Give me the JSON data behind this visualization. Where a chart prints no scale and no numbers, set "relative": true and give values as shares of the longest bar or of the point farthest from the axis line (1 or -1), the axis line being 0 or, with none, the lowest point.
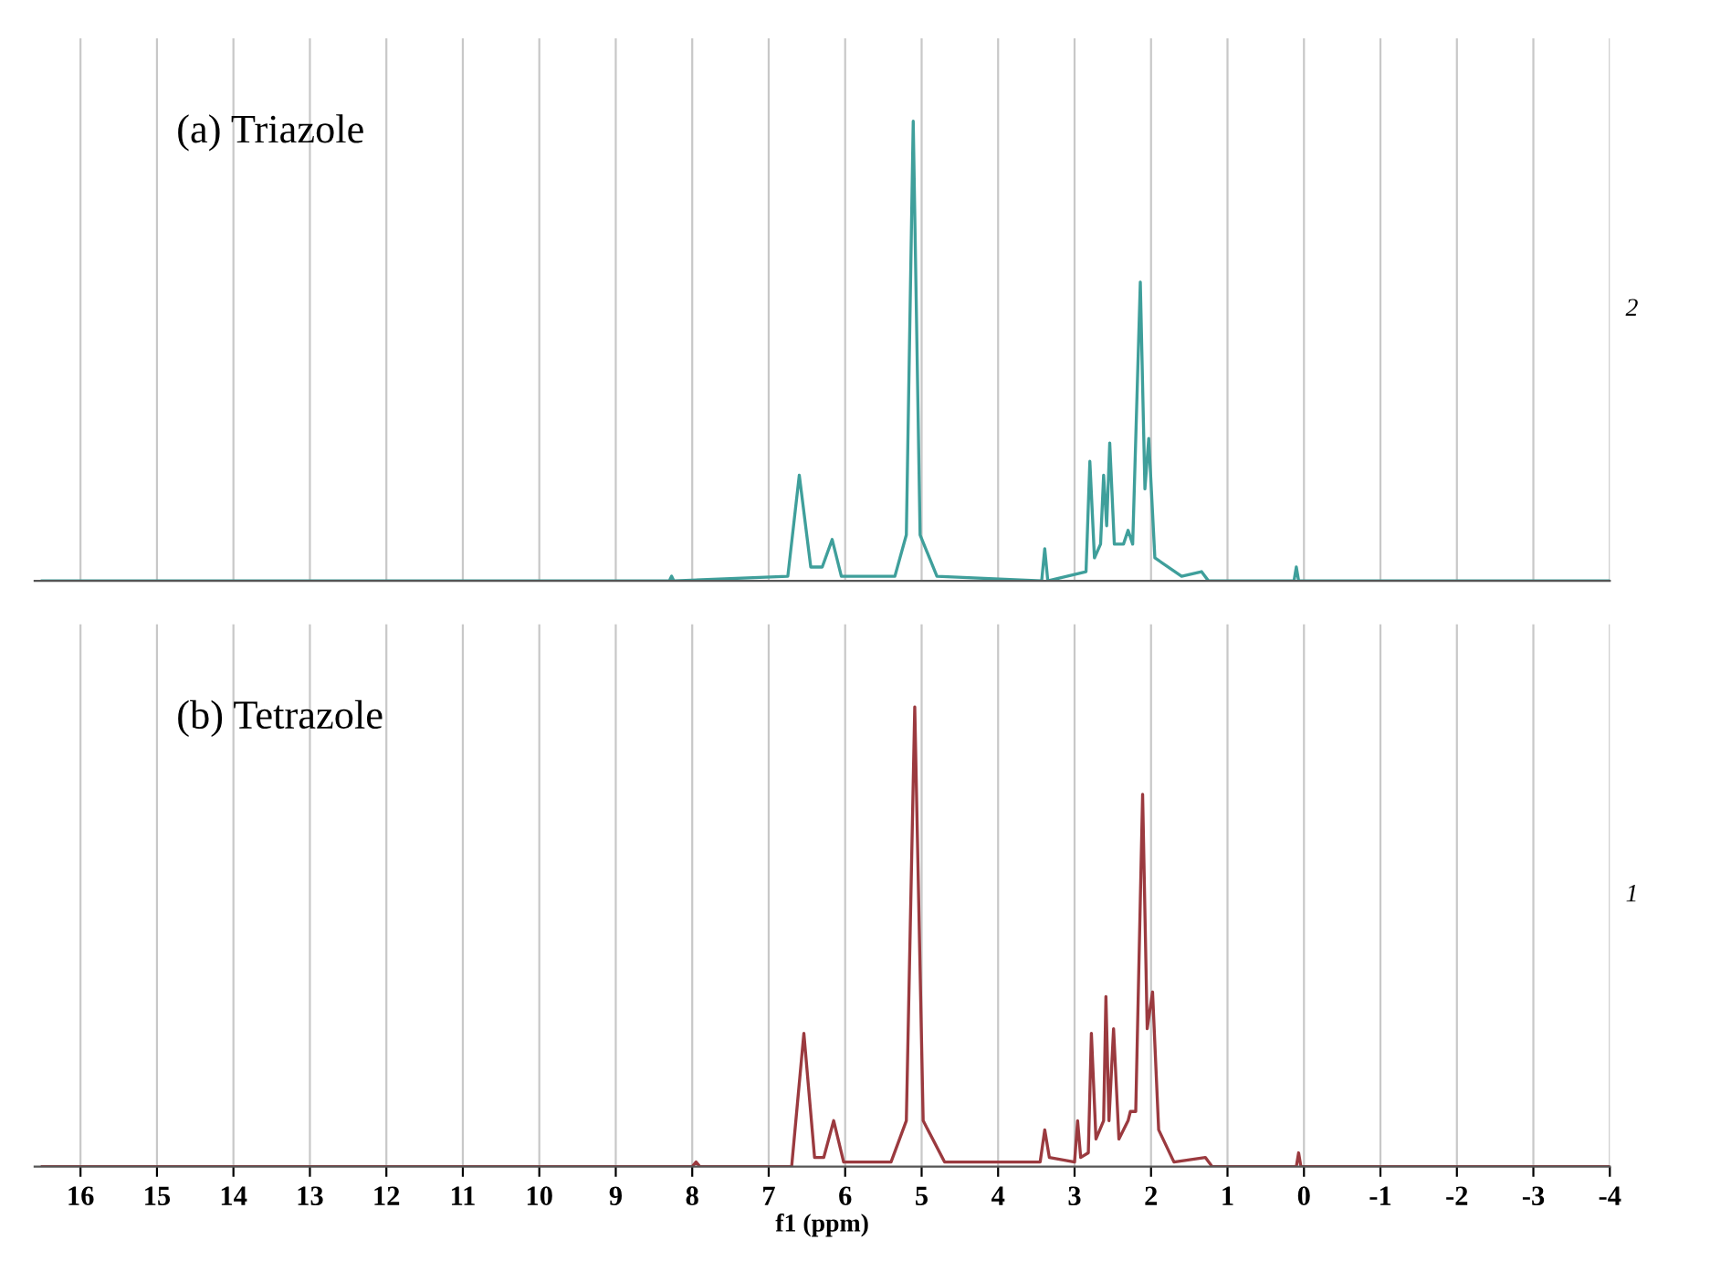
{
  "chart_data": [
    {
      "type": "line",
      "title": "(a) Triazole",
      "relative": true,
      "xlim": [
        16.6,
        -4.0
      ],
      "xticks": [
        16,
        15,
        14,
        13,
        12,
        11,
        10,
        9,
        8,
        7,
        6,
        5,
        4,
        3,
        2,
        1,
        0,
        -1,
        -2,
        -3,
        -4
      ],
      "tick_labels": false,
      "grid": "x",
      "annotations": [
        "2"
      ],
      "series": [
        {
          "color": "#3f9f9b",
          "x": [
            16.5,
            8.3,
            8.27,
            8.24,
            6.75,
            6.6,
            6.45,
            6.3,
            6.17,
            6.05,
            5.35,
            5.2,
            5.11,
            5.02,
            4.8,
            3.43,
            3.39,
            3.35,
            2.85,
            2.8,
            2.74,
            2.66,
            2.62,
            2.58,
            2.54,
            2.48,
            2.36,
            2.3,
            2.24,
            2.14,
            2.08,
            2.03,
            1.95,
            1.6,
            1.34,
            1.25,
            0.13,
            0.1,
            0.07,
            -4.0
          ],
          "values": [
            0,
            0,
            0.01,
            0,
            0.01,
            0.23,
            0.03,
            0.03,
            0.09,
            0.01,
            0.01,
            0.1,
            1,
            0.1,
            0.01,
            0,
            0.07,
            0,
            0.02,
            0.26,
            0.05,
            0.08,
            0.23,
            0.12,
            0.3,
            0.08,
            0.08,
            0.11,
            0.08,
            0.65,
            0.2,
            0.31,
            0.05,
            0.01,
            0.02,
            0,
            0,
            0.03,
            0,
            0
          ]
        }
      ]
    },
    {
      "type": "line",
      "title": "(b) Tetrazole",
      "relative": true,
      "xlabel": "f1 (ppm)",
      "xlim": [
        16.6,
        -4.0
      ],
      "xticks": [
        16,
        15,
        14,
        13,
        12,
        11,
        10,
        9,
        8,
        7,
        6,
        5,
        4,
        3,
        2,
        1,
        0,
        -1,
        -2,
        -3,
        -4
      ],
      "tick_labels": "x",
      "grid": "x",
      "annotations": [
        "1"
      ],
      "series": [
        {
          "color": "#9b3a3f",
          "x": [
            16.5,
            8.0,
            7.95,
            7.9,
            6.7,
            6.54,
            6.4,
            6.28,
            6.15,
            6.02,
            5.4,
            5.2,
            5.09,
            4.98,
            4.7,
            3.45,
            3.39,
            3.33,
            3.0,
            2.96,
            2.92,
            2.82,
            2.78,
            2.72,
            2.62,
            2.59,
            2.55,
            2.49,
            2.42,
            2.3,
            2.27,
            2.2,
            2.11,
            2.05,
            1.98,
            1.9,
            1.7,
            1.29,
            1.2,
            0.1,
            0.07,
            0.04,
            -4.0
          ],
          "values": [
            0,
            0,
            0.01,
            0,
            0,
            0.29,
            0.02,
            0.02,
            0.1,
            0.01,
            0.01,
            0.1,
            1,
            0.1,
            0.01,
            0.01,
            0.08,
            0.02,
            0.01,
            0.1,
            0.02,
            0.03,
            0.29,
            0.06,
            0.1,
            0.37,
            0.1,
            0.3,
            0.06,
            0.1,
            0.12,
            0.12,
            0.81,
            0.3,
            0.38,
            0.08,
            0.01,
            0.02,
            0,
            0,
            0.03,
            0,
            0
          ]
        }
      ]
    }
  ]
}
